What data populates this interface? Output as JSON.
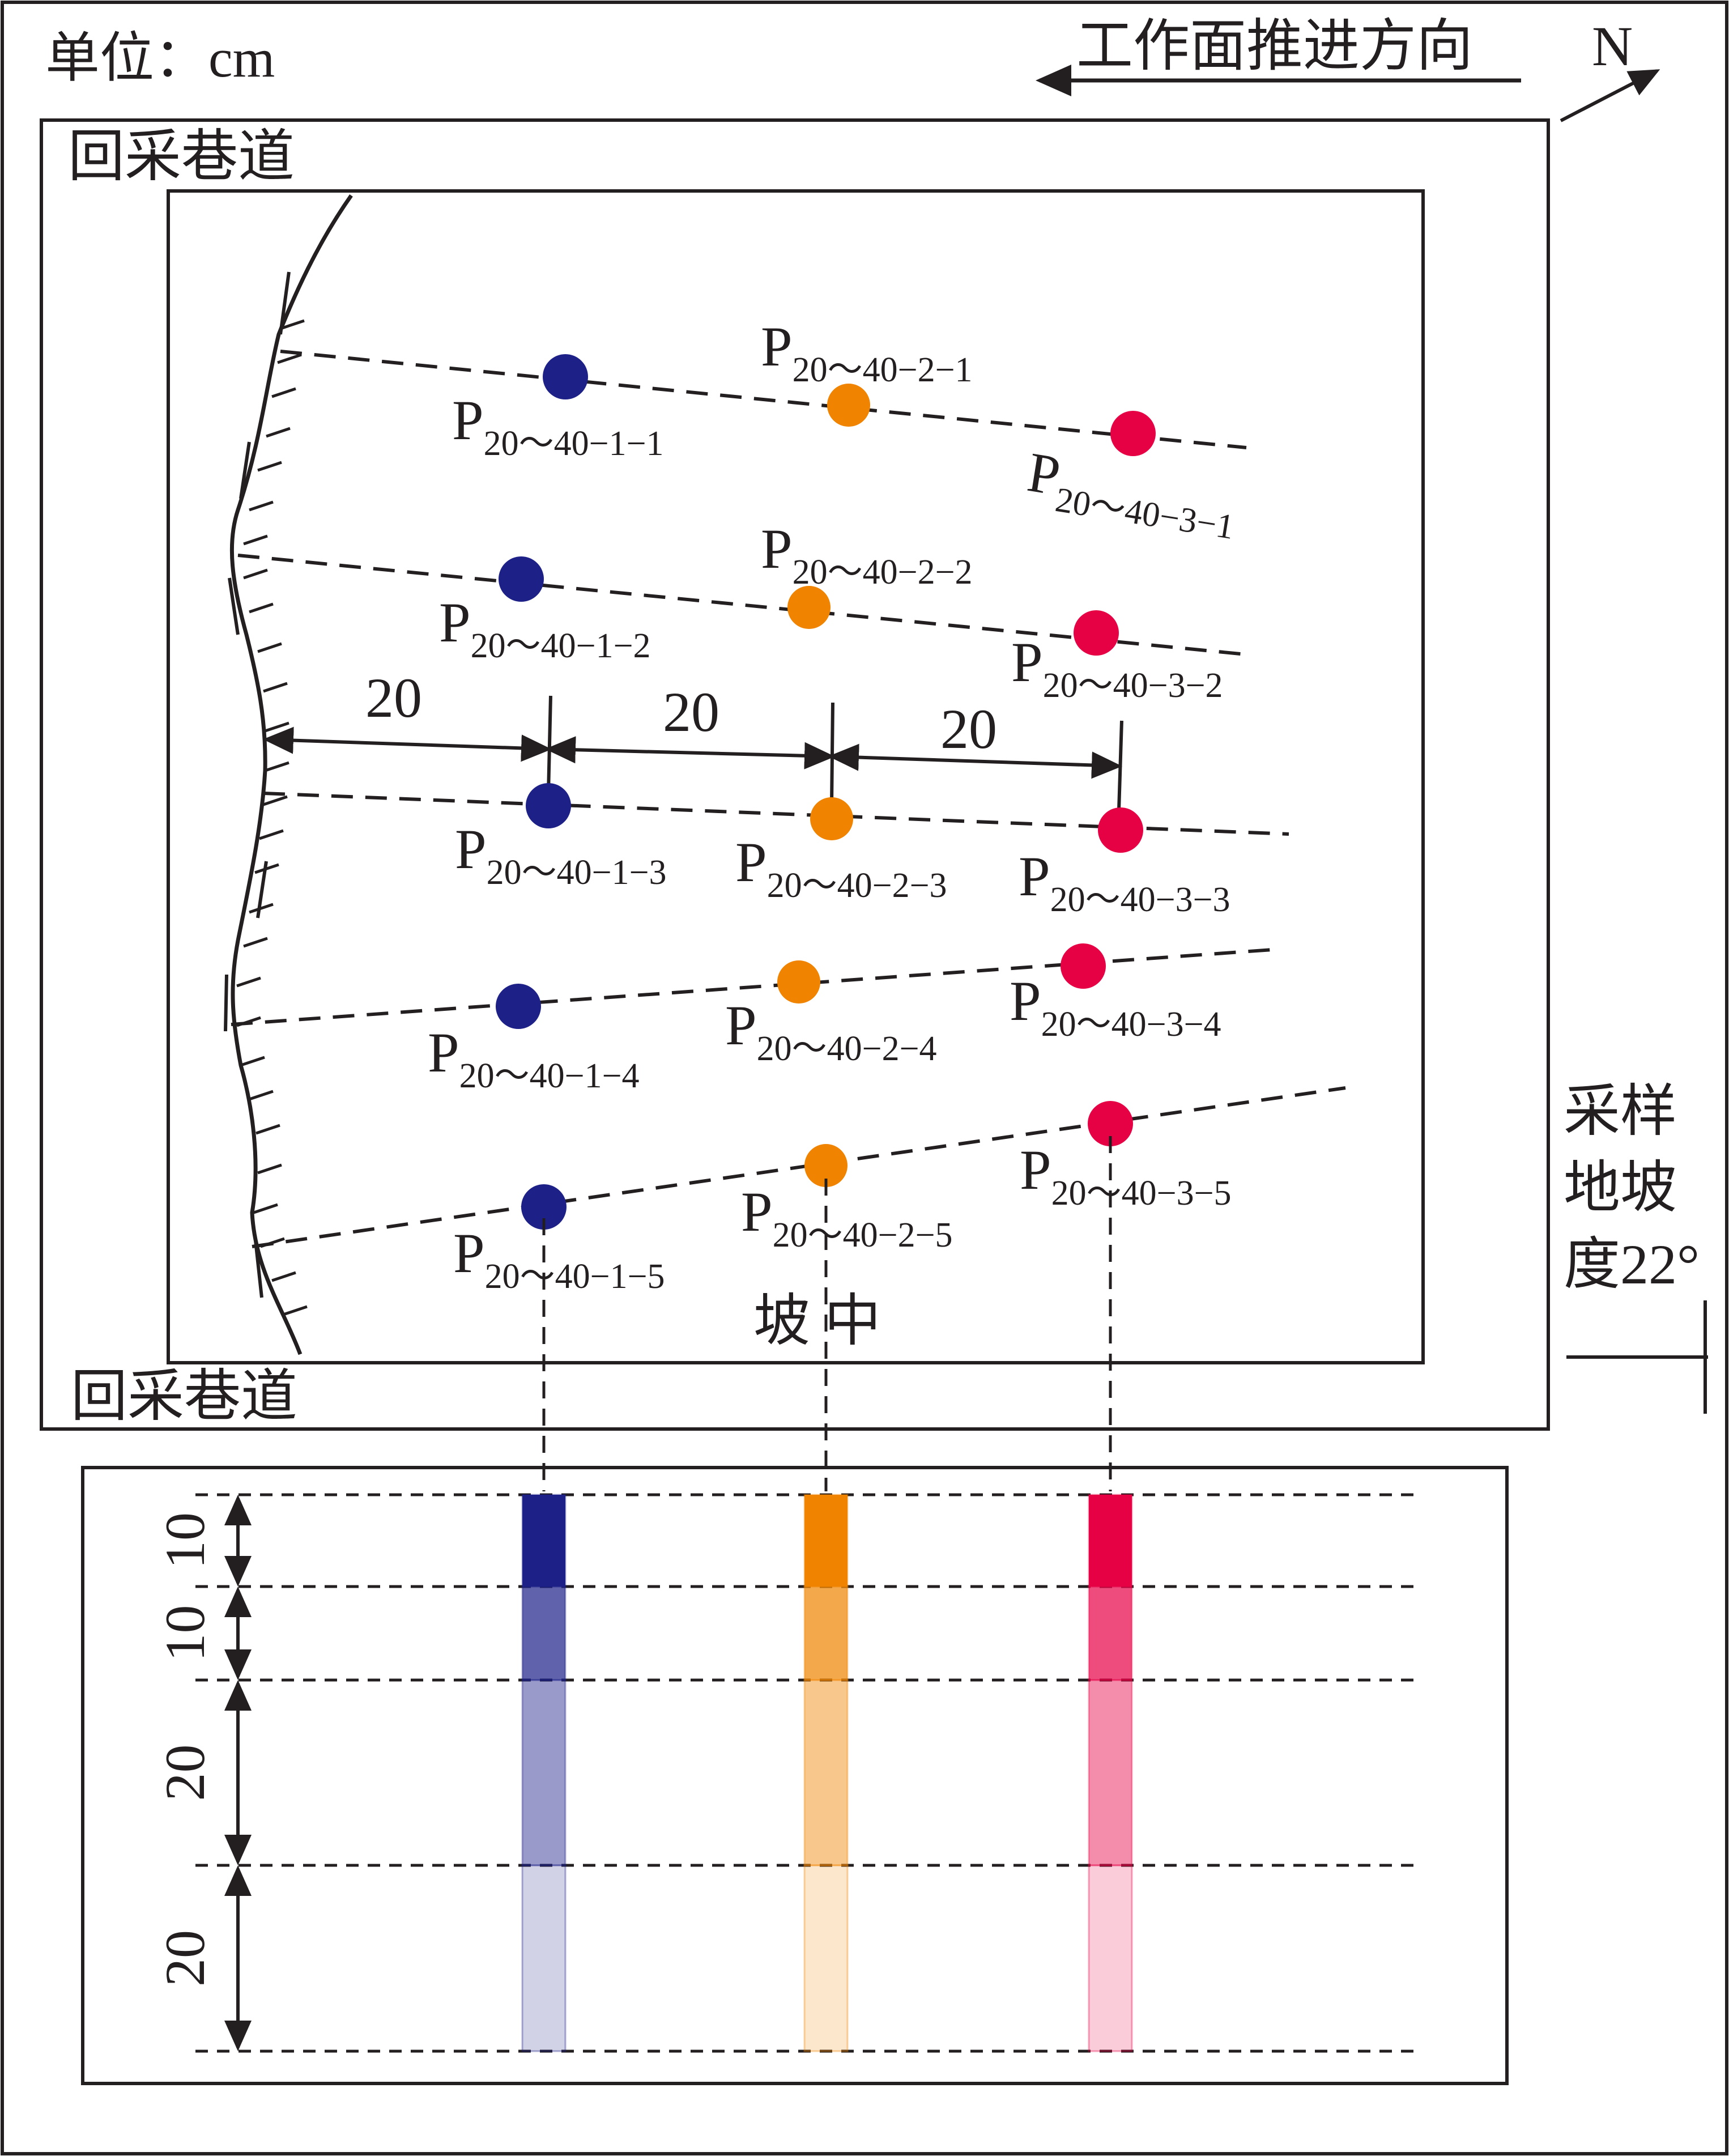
{
  "unit_label": "单位：cm",
  "advance_direction": "工作面推进方向",
  "north": "N",
  "roadway_top": "回采巷道",
  "roadway_bottom": "回采巷道",
  "slope_label": "坡 中",
  "slope_angle": [
    "采样",
    "地坡",
    "度22°"
  ],
  "spacing_labels": [
    "20",
    "20",
    "20"
  ],
  "depth_labels": [
    "10",
    "10",
    "20",
    "20"
  ],
  "colors": {
    "line": "#231f20",
    "col1": "#1d2087",
    "col2": "#f08300",
    "col3": "#e60044"
  },
  "samples": [
    {
      "row": 1,
      "col": 1,
      "label": {
        "main": "P",
        "sub": "20～40−1−1"
      }
    },
    {
      "row": 1,
      "col": 2,
      "label": {
        "main": "P",
        "sub": "20～40−2−1"
      }
    },
    {
      "row": 1,
      "col": 3,
      "label": {
        "main": "P",
        "sub": "20～40−3−1"
      }
    },
    {
      "row": 2,
      "col": 1,
      "label": {
        "main": "P",
        "sub": "20～40−1−2"
      }
    },
    {
      "row": 2,
      "col": 2,
      "label": {
        "main": "P",
        "sub": "20～40−2−2"
      }
    },
    {
      "row": 2,
      "col": 3,
      "label": {
        "main": "P",
        "sub": "20～40−3−2"
      }
    },
    {
      "row": 3,
      "col": 1,
      "label": {
        "main": "P",
        "sub": "20～40−1−3"
      }
    },
    {
      "row": 3,
      "col": 2,
      "label": {
        "main": "P",
        "sub": "20～40−2−3"
      }
    },
    {
      "row": 3,
      "col": 3,
      "label": {
        "main": "P",
        "sub": "20～40−3−3"
      }
    },
    {
      "row": 4,
      "col": 1,
      "label": {
        "main": "P",
        "sub": "20～40−1−4"
      }
    },
    {
      "row": 4,
      "col": 2,
      "label": {
        "main": "P",
        "sub": "20～40−2−4"
      }
    },
    {
      "row": 4,
      "col": 3,
      "label": {
        "main": "P",
        "sub": "20～40−3−4"
      }
    },
    {
      "row": 5,
      "col": 1,
      "label": {
        "main": "P",
        "sub": "20～40−1−5"
      }
    },
    {
      "row": 5,
      "col": 2,
      "label": {
        "main": "P",
        "sub": "20～40−2−5"
      }
    },
    {
      "row": 5,
      "col": 3,
      "label": {
        "main": "P",
        "sub": "20～40−3−5"
      }
    }
  ]
}
